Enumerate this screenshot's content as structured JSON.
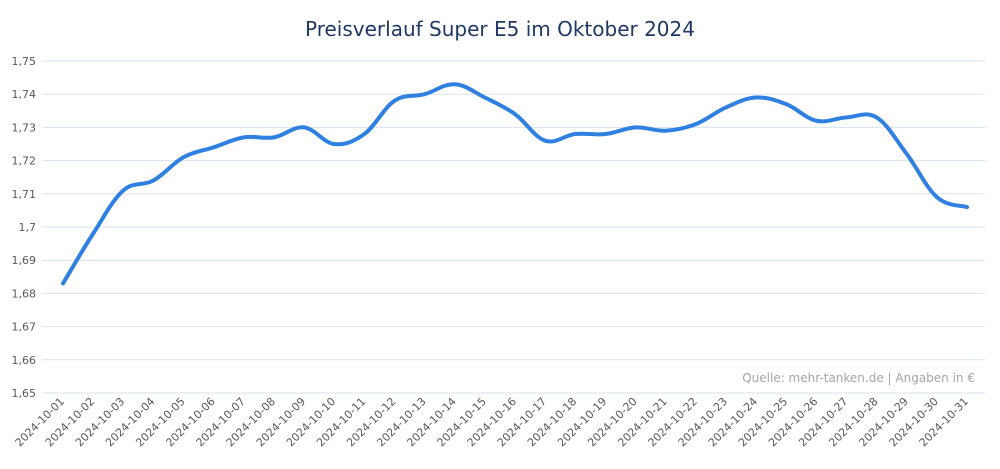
{
  "chart_data": {
    "type": "line",
    "title": "Preisverlauf Super E5 im Oktober 2024",
    "xlabel": "",
    "ylabel": "",
    "ylim": [
      1.65,
      1.75
    ],
    "yticks": [
      "1,65",
      "1,66",
      "1,67",
      "1,68",
      "1,69",
      "1,7",
      "1,71",
      "1,72",
      "1,73",
      "1,74",
      "1,75"
    ],
    "grid": true,
    "legend": "none",
    "line_color": "#2f80e0",
    "source_note": "Quelle: mehr-tanken.de | Angaben in €",
    "x": [
      "2024-10-01",
      "2024-10-02",
      "2024-10-03",
      "2024-10-04",
      "2024-10-05",
      "2024-10-06",
      "2024-10-07",
      "2024-10-08",
      "2024-10-09",
      "2024-10-10",
      "2024-10-11",
      "2024-10-12",
      "2024-10-13",
      "2024-10-14",
      "2024-10-15",
      "2024-10-16",
      "2024-10-17",
      "2024-10-18",
      "2024-10-19",
      "2024-10-20",
      "2024-10-21",
      "2024-10-22",
      "2024-10-23",
      "2024-10-24",
      "2024-10-25",
      "2024-10-26",
      "2024-10-27",
      "2024-10-28",
      "2024-10-29",
      "2024-10-30",
      "2024-10-31"
    ],
    "values": [
      1.683,
      1.698,
      1.711,
      1.714,
      1.721,
      1.724,
      1.727,
      1.727,
      1.73,
      1.725,
      1.728,
      1.738,
      1.74,
      1.743,
      1.739,
      1.734,
      1.726,
      1.728,
      1.728,
      1.73,
      1.729,
      1.731,
      1.736,
      1.739,
      1.737,
      1.732,
      1.733,
      1.733,
      1.722,
      1.709,
      1.706
    ]
  }
}
